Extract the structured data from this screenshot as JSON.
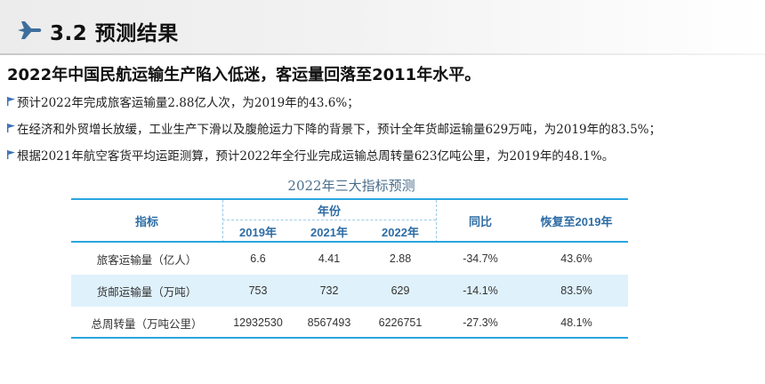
{
  "header": {
    "section_title": "3.2 预测结果",
    "icon": "airplane-icon"
  },
  "headline": "2022年中国民航运输生产陷入低迷，客运量回落至2011年水平。",
  "bullets": [
    "预计2022年完成旅客运输量2.88亿人次，为2019年的43.6%；",
    "在经济和外贸增长放缓，工业生产下滑以及腹舱运力下降的背景下，预计全年货邮运输量629万吨，为2019年的83.5%；",
    "根据2021年航空客货平均运距测算，预计2022年全行业完成运输总周转量623亿吨公里，为2019年的48.1%。"
  ],
  "table": {
    "title": "2022年三大指标预测",
    "headers": {
      "indicator": "指标",
      "year_group": "年份",
      "years": [
        "2019年",
        "2021年",
        "2022年"
      ],
      "yoy": "同比",
      "recovery": "恢复至2019年"
    },
    "rows": [
      {
        "name": "旅客运输量（亿人）",
        "v2019": "6.6",
        "v2021": "4.41",
        "v2022": "2.88",
        "yoy": "-34.7%",
        "recovery": "43.6%"
      },
      {
        "name": "货邮运输量（万吨）",
        "v2019": "753",
        "v2021": "732",
        "v2022": "629",
        "yoy": "-14.1%",
        "recovery": "83.5%"
      },
      {
        "name": "总周转量（万吨公里）",
        "v2019": "12932530",
        "v2021": "8567493",
        "v2022": "6226751",
        "yoy": "-27.3%",
        "recovery": "48.1%"
      }
    ]
  },
  "colors": {
    "accent_blue": "#29a6e0",
    "header_text": "#2e6da4",
    "row_shade": "#dff1fb",
    "bullet_flag": "#3b6fb6"
  }
}
